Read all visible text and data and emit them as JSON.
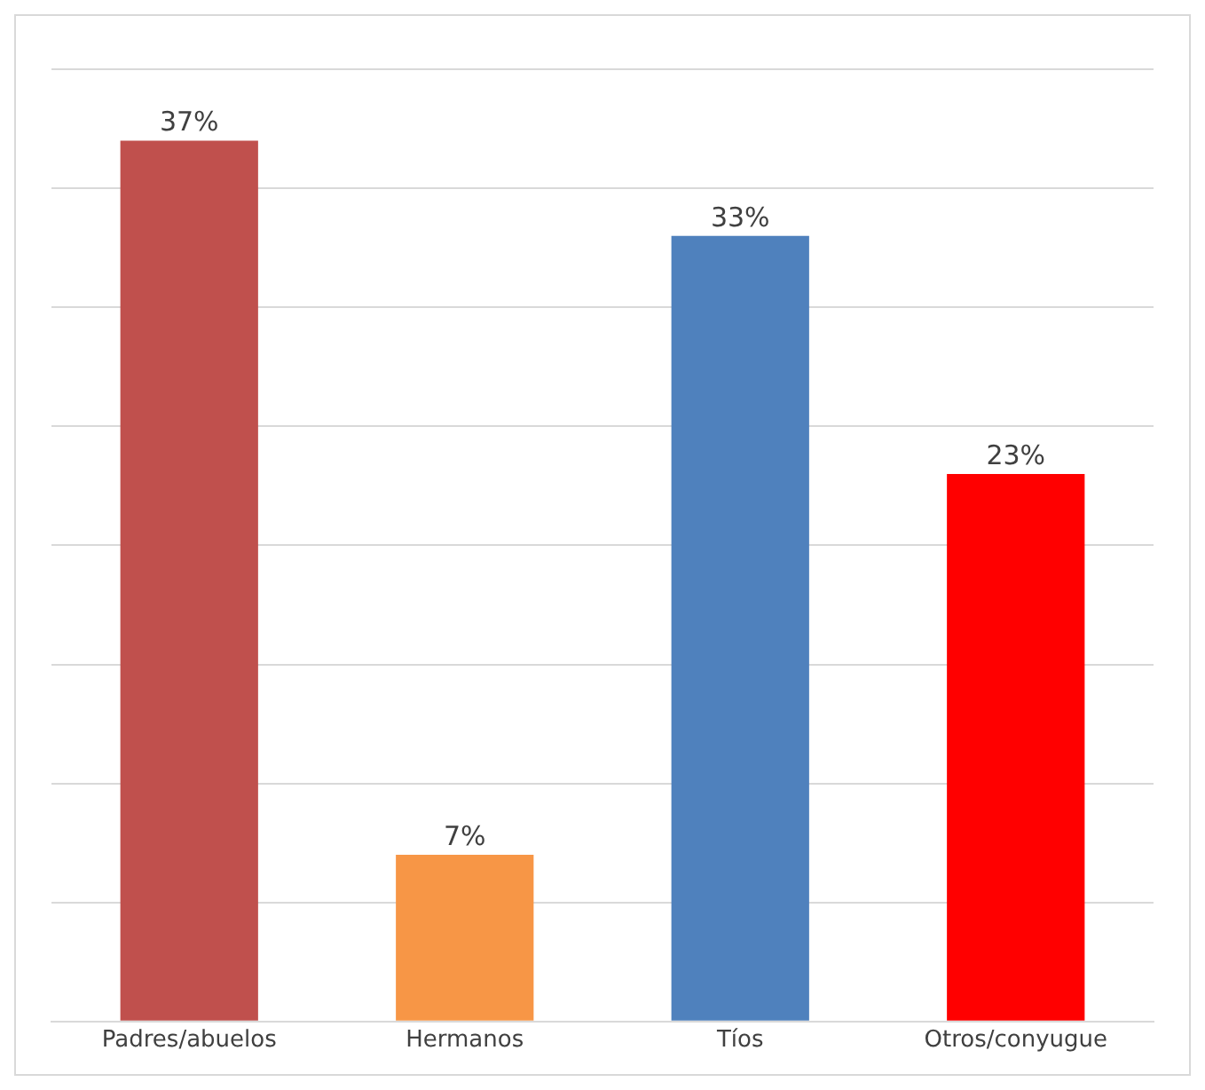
{
  "chart_data": {
    "type": "bar",
    "categories": [
      "Padres/abuelos",
      "Hermanos",
      "Tíos",
      "Otros/conyugue"
    ],
    "values": [
      37,
      7,
      33,
      23
    ],
    "colors": [
      "#c0504d",
      "#f79646",
      "#4f81bd",
      "#ff0000"
    ],
    "value_labels": [
      "37%",
      "7%",
      "33%",
      "23%"
    ],
    "ylim": [
      0,
      40
    ],
    "yticks": [
      {
        "value": 0,
        "label": null
      },
      {
        "value": 5,
        "label": null
      },
      {
        "value": 10,
        "label": null
      },
      {
        "value": 15,
        "label": null
      },
      {
        "value": 20,
        "label": null
      },
      {
        "value": 25,
        "label": null
      },
      {
        "value": 30,
        "label": null
      },
      {
        "value": 35,
        "label": null
      },
      {
        "value": 40,
        "label": null
      }
    ],
    "grid": "y",
    "tick_labels": "x"
  }
}
